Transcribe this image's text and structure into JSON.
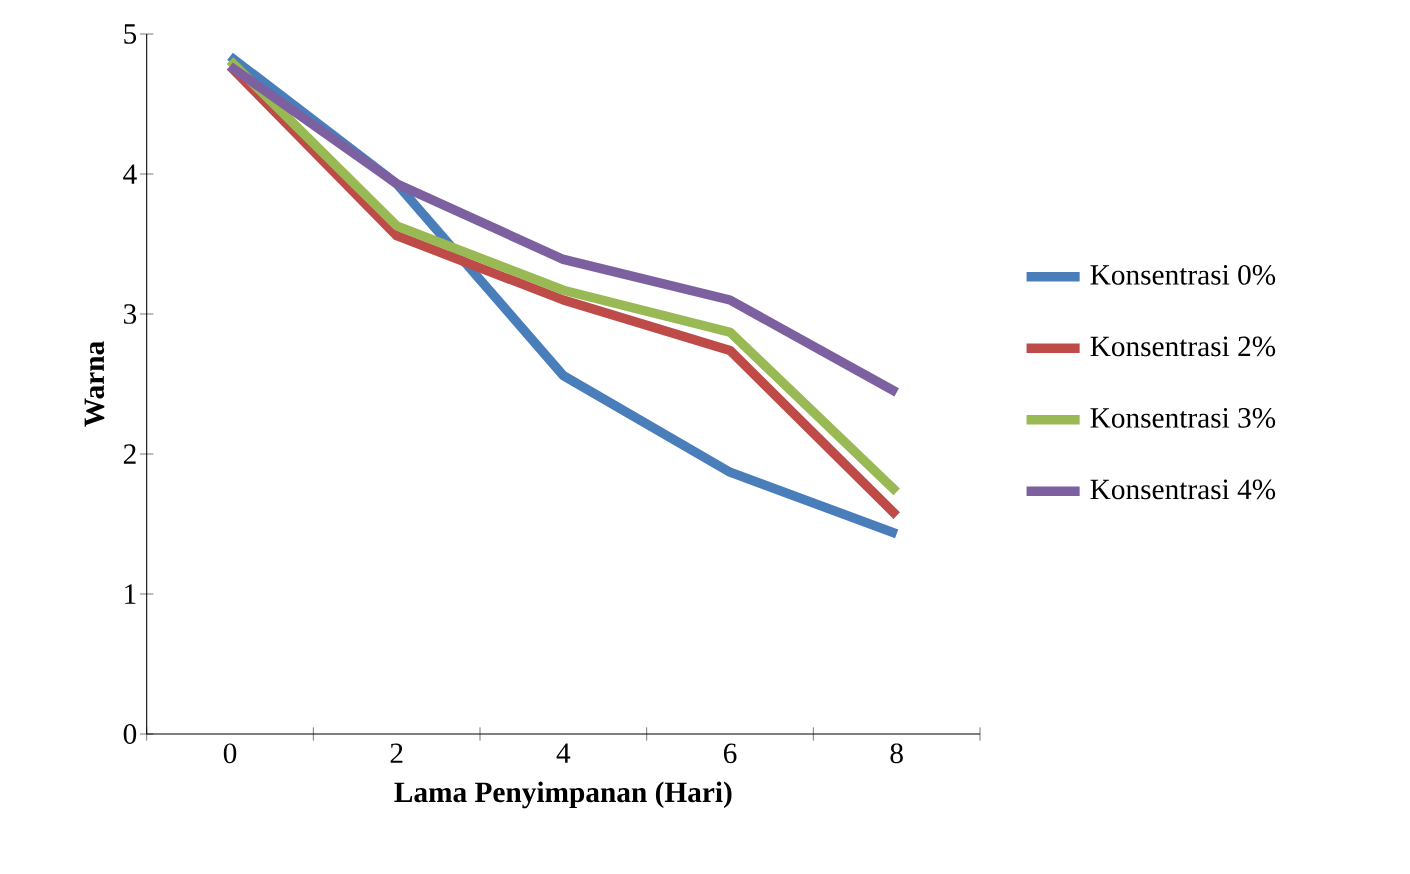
{
  "chart_data": {
    "type": "line",
    "xlabel": "Lama Penyimpanan (Hari)",
    "ylabel": "Warna",
    "categories": [
      "0",
      "2",
      "4",
      "6",
      "8"
    ],
    "series": [
      {
        "name": "Konsentrasi 0%",
        "color": "#4a7ebb",
        "values": [
          4.84,
          3.93,
          2.56,
          1.87,
          1.43
        ]
      },
      {
        "name": "Konsentrasi 2%",
        "color": "#be4b48",
        "values": [
          4.77,
          3.56,
          3.1,
          2.74,
          1.56
        ]
      },
      {
        "name": "Konsentrasi 3%",
        "color": "#98b954",
        "values": [
          4.81,
          3.63,
          3.17,
          2.87,
          1.73
        ]
      },
      {
        "name": "Konsentrasi 4%",
        "color": "#7d60a0",
        "values": [
          4.77,
          3.93,
          3.39,
          3.1,
          2.44
        ]
      }
    ],
    "ylim": [
      0,
      5
    ],
    "yticks": [
      0,
      1,
      2,
      3,
      4,
      5
    ],
    "legend": "right",
    "marker": "none",
    "line_style": "solid",
    "grid": false
  }
}
